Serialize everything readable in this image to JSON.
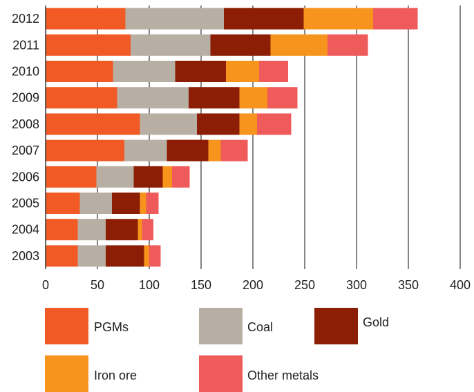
{
  "chart_data": {
    "type": "bar",
    "orientation": "horizontal",
    "stacked": true,
    "title": "",
    "xlabel": "",
    "ylabel": "",
    "xlim": [
      0,
      400
    ],
    "x_ticks": [
      0,
      50,
      100,
      150,
      200,
      250,
      300,
      350,
      400
    ],
    "grid": "vertical",
    "legend_position": "bottom",
    "categories": [
      "2012",
      "2011",
      "2010",
      "2009",
      "2008",
      "2007",
      "2006",
      "2005",
      "2004",
      "2003"
    ],
    "series": [
      {
        "name": "PGMs",
        "color": "#f15a24",
        "values": [
          77,
          82,
          65,
          69,
          91,
          76,
          49,
          33,
          31,
          31
        ]
      },
      {
        "name": "Coal",
        "color": "#b8afa4",
        "values": [
          95,
          77,
          60,
          69,
          55,
          41,
          36,
          31,
          27,
          27
        ]
      },
      {
        "name": "Gold",
        "color": "#8b1e04",
        "values": [
          77,
          58,
          49,
          49,
          41,
          40,
          28,
          27,
          31,
          37
        ]
      },
      {
        "name": "Iron ore",
        "color": "#f7941d",
        "values": [
          67,
          55,
          32,
          27,
          17,
          12,
          9,
          6,
          4,
          5
        ]
      },
      {
        "name": "Other metals",
        "color": "#ef5b5b",
        "values": [
          43,
          39,
          28,
          29,
          33,
          26,
          17,
          12,
          11,
          11
        ]
      }
    ]
  }
}
